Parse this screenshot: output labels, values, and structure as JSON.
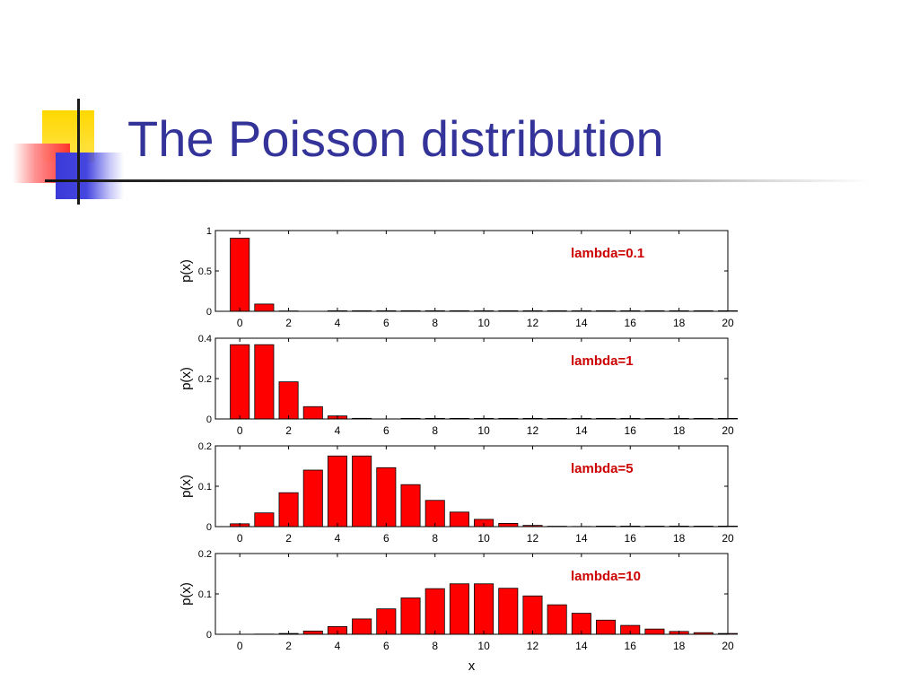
{
  "slide": {
    "title": "The Poisson distribution"
  },
  "colors": {
    "title": "#333399",
    "bar": "#ff0000",
    "annotation": "#cc0000"
  },
  "chart_data": [
    {
      "type": "bar",
      "annotation": "lambda=0.1",
      "ylabel": "p(x)",
      "xlabel": "",
      "ylim": [
        0,
        1
      ],
      "yticks": [
        0,
        0.5,
        1
      ],
      "ytick_labels": [
        "0",
        "0.5",
        "1"
      ],
      "xlim": [
        -1,
        20
      ],
      "xticks": [
        0,
        2,
        4,
        6,
        8,
        10,
        12,
        14,
        16,
        18,
        20
      ],
      "x": [
        0,
        1,
        2,
        3,
        4,
        5,
        6,
        7,
        8,
        9,
        10,
        11,
        12,
        13,
        14,
        15,
        16,
        17,
        18,
        19,
        20
      ],
      "values": [
        0.905,
        0.09,
        0.0045,
        0.00015,
        0,
        0,
        0,
        0,
        0,
        0,
        0,
        0,
        0,
        0,
        0,
        0,
        0,
        0,
        0,
        0,
        0
      ]
    },
    {
      "type": "bar",
      "annotation": "lambda=1",
      "ylabel": "p(x)",
      "xlabel": "",
      "ylim": [
        0,
        0.4
      ],
      "yticks": [
        0,
        0.2,
        0.4
      ],
      "ytick_labels": [
        "0",
        "0.2",
        "0.4"
      ],
      "xlim": [
        -1,
        20
      ],
      "xticks": [
        0,
        2,
        4,
        6,
        8,
        10,
        12,
        14,
        16,
        18,
        20
      ],
      "x": [
        0,
        1,
        2,
        3,
        4,
        5,
        6,
        7,
        8,
        9,
        10,
        11,
        12,
        13,
        14,
        15,
        16,
        17,
        18,
        19,
        20
      ],
      "values": [
        0.368,
        0.368,
        0.184,
        0.061,
        0.015,
        0.003,
        0.0005,
        0,
        0,
        0,
        0,
        0,
        0,
        0,
        0,
        0,
        0,
        0,
        0,
        0,
        0
      ]
    },
    {
      "type": "bar",
      "annotation": "lambda=5",
      "ylabel": "p(x)",
      "xlabel": "",
      "ylim": [
        0,
        0.2
      ],
      "yticks": [
        0,
        0.1,
        0.2
      ],
      "ytick_labels": [
        "0",
        "0.1",
        "0.2"
      ],
      "xlim": [
        -1,
        20
      ],
      "xticks": [
        0,
        2,
        4,
        6,
        8,
        10,
        12,
        14,
        16,
        18,
        20
      ],
      "x": [
        0,
        1,
        2,
        3,
        4,
        5,
        6,
        7,
        8,
        9,
        10,
        11,
        12,
        13,
        14,
        15,
        16,
        17,
        18,
        19,
        20
      ],
      "values": [
        0.007,
        0.034,
        0.084,
        0.14,
        0.175,
        0.175,
        0.146,
        0.104,
        0.065,
        0.036,
        0.018,
        0.008,
        0.003,
        0.001,
        0.0005,
        0,
        0,
        0,
        0,
        0,
        0
      ]
    },
    {
      "type": "bar",
      "annotation": "lambda=10",
      "ylabel": "p(x)",
      "xlabel": "x",
      "ylim": [
        0,
        0.2
      ],
      "yticks": [
        0,
        0.1,
        0.2
      ],
      "ytick_labels": [
        "0",
        "0.1",
        "0.2"
      ],
      "xlim": [
        -1,
        20
      ],
      "xticks": [
        0,
        2,
        4,
        6,
        8,
        10,
        12,
        14,
        16,
        18,
        20
      ],
      "x": [
        0,
        1,
        2,
        3,
        4,
        5,
        6,
        7,
        8,
        9,
        10,
        11,
        12,
        13,
        14,
        15,
        16,
        17,
        18,
        19,
        20
      ],
      "values": [
        5e-05,
        0.0005,
        0.002,
        0.008,
        0.019,
        0.038,
        0.063,
        0.09,
        0.113,
        0.125,
        0.125,
        0.114,
        0.095,
        0.073,
        0.052,
        0.035,
        0.022,
        0.013,
        0.007,
        0.004,
        0.002
      ]
    }
  ]
}
